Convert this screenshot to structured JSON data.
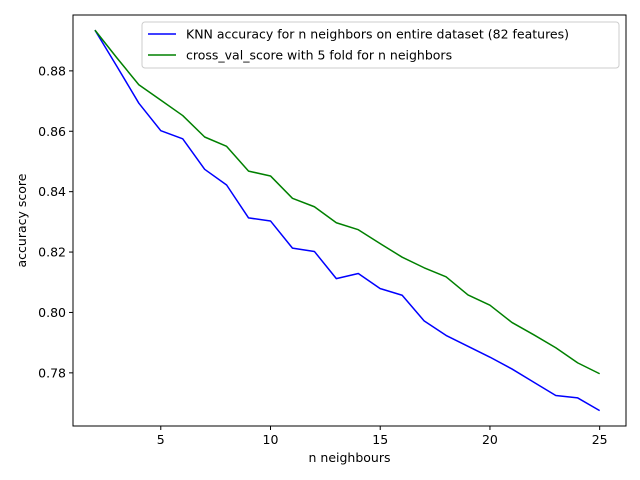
{
  "chart_data": {
    "type": "line",
    "xlabel": "n neighbours",
    "ylabel": "accuracy score",
    "xlim": [
      1,
      26.2
    ],
    "ylim": [
      0.7624,
      0.8985
    ],
    "xticks": [
      5,
      10,
      15,
      20,
      25
    ],
    "yticks": [
      0.78,
      0.8,
      0.82,
      0.84,
      0.86,
      0.88
    ],
    "xtick_labels": [
      "5",
      "10",
      "15",
      "20",
      "25"
    ],
    "ytick_labels": [
      "0.78",
      "0.80",
      "0.82",
      "0.84",
      "0.86",
      "0.88"
    ],
    "legend_position": "top-right",
    "grid": false,
    "x": [
      2,
      3,
      4,
      5,
      6,
      7,
      8,
      9,
      10,
      11,
      12,
      13,
      14,
      15,
      16,
      17,
      18,
      19,
      20,
      21,
      22,
      23,
      24,
      25
    ],
    "series": [
      {
        "name": "KNN accuracy for n neighbors on entire dataset (82 features)",
        "color": "#0000ff",
        "values": [
          0.8935,
          0.8815,
          0.8693,
          0.8602,
          0.8575,
          0.8474,
          0.8422,
          0.8313,
          0.8303,
          0.8213,
          0.8202,
          0.8112,
          0.8129,
          0.8079,
          0.8057,
          0.7972,
          0.7924,
          0.7888,
          0.7852,
          0.7813,
          0.7769,
          0.7725,
          0.7717,
          0.7675
        ]
      },
      {
        "name": "cross_val_score with 5 fold for n neighbors",
        "color": "#008000",
        "values": [
          0.8935,
          0.8843,
          0.8754,
          0.8703,
          0.8652,
          0.8581,
          0.855,
          0.8468,
          0.8452,
          0.8378,
          0.835,
          0.8297,
          0.8274,
          0.8228,
          0.8183,
          0.8148,
          0.8118,
          0.8058,
          0.8024,
          0.7967,
          0.7926,
          0.7883,
          0.7833,
          0.7797
        ]
      }
    ]
  }
}
